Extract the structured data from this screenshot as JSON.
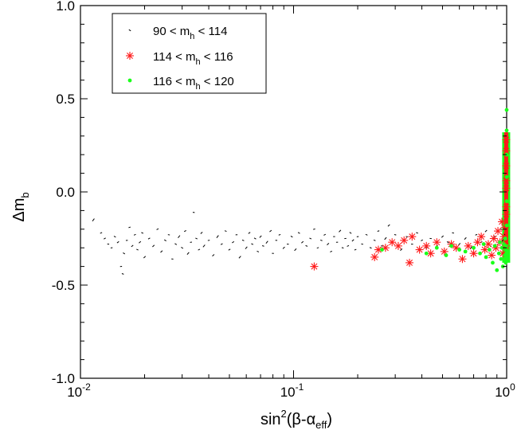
{
  "chart_data": {
    "type": "scatter",
    "title": "",
    "xlabel": {
      "base": "sin",
      "sup": "2",
      "open": "(β-α",
      "sub": "eff",
      "close": ")"
    },
    "ylabel": {
      "main": "Δm",
      "sub": "b"
    },
    "xscale": "log",
    "xlim": [
      0.01,
      1.0
    ],
    "ylim": [
      -1.0,
      1.0
    ],
    "grid": false,
    "legend_position": "top-left",
    "x_tick_labels": [
      {
        "value": 0.01,
        "base": "10",
        "exp": "-2"
      },
      {
        "value": 0.1,
        "base": "10",
        "exp": "-1"
      },
      {
        "value": 1.0,
        "base": "10",
        "exp": "0"
      }
    ],
    "y_tick_labels": [
      {
        "value": 1.0,
        "label": "1.0"
      },
      {
        "value": 0.5,
        "label": "0.5"
      },
      {
        "value": 0.0,
        "label": "0.0"
      },
      {
        "value": -0.5,
        "label": "-0.5"
      },
      {
        "value": -1.0,
        "label": "-1.0"
      }
    ],
    "series": [
      {
        "name": "90 < m_h < 114",
        "legend": {
          "pre": "90 < m",
          "sub": "h",
          "post": " < 114"
        },
        "marker": "dot",
        "color": "#000000",
        "points": [
          [
            0.0115,
            -0.15
          ],
          [
            0.0125,
            -0.22
          ],
          [
            0.013,
            -0.25
          ],
          [
            0.0135,
            -0.28
          ],
          [
            0.014,
            -0.3
          ],
          [
            0.0145,
            -0.24
          ],
          [
            0.015,
            -0.27
          ],
          [
            0.0155,
            -0.4
          ],
          [
            0.0158,
            -0.44
          ],
          [
            0.016,
            -0.33
          ],
          [
            0.0165,
            -0.26
          ],
          [
            0.017,
            -0.19
          ],
          [
            0.0175,
            -0.29
          ],
          [
            0.018,
            -0.23
          ],
          [
            0.0185,
            -0.31
          ],
          [
            0.019,
            -0.27
          ],
          [
            0.0195,
            -0.22
          ],
          [
            0.02,
            -0.35
          ],
          [
            0.021,
            -0.25
          ],
          [
            0.022,
            -0.29
          ],
          [
            0.023,
            -0.2
          ],
          [
            0.024,
            -0.32
          ],
          [
            0.025,
            -0.26
          ],
          [
            0.026,
            -0.23
          ],
          [
            0.027,
            -0.36
          ],
          [
            0.028,
            -0.28
          ],
          [
            0.029,
            -0.24
          ],
          [
            0.03,
            -0.3
          ],
          [
            0.031,
            -0.21
          ],
          [
            0.032,
            -0.33
          ],
          [
            0.033,
            -0.27
          ],
          [
            0.034,
            -0.11
          ],
          [
            0.035,
            -0.25
          ],
          [
            0.036,
            -0.31
          ],
          [
            0.037,
            -0.22
          ],
          [
            0.038,
            -0.29
          ],
          [
            0.04,
            -0.26
          ],
          [
            0.042,
            -0.34
          ],
          [
            0.044,
            -0.24
          ],
          [
            0.046,
            -0.28
          ],
          [
            0.048,
            -0.21
          ],
          [
            0.05,
            -0.31
          ],
          [
            0.052,
            -0.27
          ],
          [
            0.054,
            -0.23
          ],
          [
            0.056,
            -0.35
          ],
          [
            0.058,
            -0.26
          ],
          [
            0.06,
            -0.3
          ],
          [
            0.062,
            -0.22
          ],
          [
            0.064,
            -0.28
          ],
          [
            0.066,
            -0.25
          ],
          [
            0.068,
            -0.32
          ],
          [
            0.07,
            -0.24
          ],
          [
            0.072,
            -0.29
          ],
          [
            0.075,
            -0.27
          ],
          [
            0.078,
            -0.21
          ],
          [
            0.08,
            -0.33
          ],
          [
            0.083,
            -0.26
          ],
          [
            0.086,
            -0.23
          ],
          [
            0.09,
            -0.3
          ],
          [
            0.094,
            -0.28
          ],
          [
            0.098,
            -0.24
          ],
          [
            0.102,
            -0.31
          ],
          [
            0.106,
            -0.22
          ],
          [
            0.11,
            -0.27
          ],
          [
            0.115,
            -0.29
          ],
          [
            0.12,
            -0.25
          ],
          [
            0.125,
            -0.2
          ],
          [
            0.13,
            -0.3
          ],
          [
            0.135,
            -0.26
          ],
          [
            0.14,
            -0.23
          ],
          [
            0.145,
            -0.28
          ],
          [
            0.15,
            -0.32
          ],
          [
            0.155,
            -0.24
          ],
          [
            0.16,
            -0.27
          ],
          [
            0.165,
            -0.21
          ],
          [
            0.17,
            -0.3
          ],
          [
            0.175,
            -0.25
          ],
          [
            0.18,
            -0.29
          ],
          [
            0.185,
            -0.22
          ],
          [
            0.19,
            -0.26
          ],
          [
            0.195,
            -0.31
          ],
          [
            0.2,
            -0.24
          ],
          [
            0.21,
            -0.28
          ],
          [
            0.22,
            -0.23
          ],
          [
            0.23,
            -0.3
          ],
          [
            0.24,
            -0.26
          ],
          [
            0.25,
            -0.21
          ],
          [
            0.26,
            -0.29
          ],
          [
            0.27,
            -0.25
          ],
          [
            0.28,
            -0.18
          ],
          [
            0.29,
            -0.27
          ],
          [
            0.3,
            -0.23
          ],
          [
            0.32,
            -0.31
          ],
          [
            0.34,
            -0.24
          ],
          [
            0.36,
            -0.28
          ],
          [
            0.38,
            -0.22
          ],
          [
            0.4,
            -0.26
          ],
          [
            0.42,
            -0.3
          ],
          [
            0.44,
            -0.25
          ],
          [
            0.47,
            -0.29
          ],
          [
            0.5,
            -0.24
          ],
          [
            0.53,
            -0.27
          ],
          [
            0.56,
            -0.22
          ],
          [
            0.6,
            -0.28
          ],
          [
            0.64,
            -0.25
          ],
          [
            0.68,
            -0.3
          ],
          [
            0.72,
            -0.23
          ],
          [
            0.76,
            -0.27
          ],
          [
            0.8,
            -0.21
          ],
          [
            0.84,
            -0.29
          ],
          [
            0.88,
            -0.24
          ],
          [
            0.91,
            -0.28
          ],
          [
            0.94,
            -0.2
          ],
          [
            0.96,
            -0.26
          ],
          [
            0.98,
            -0.23
          ],
          [
            0.99,
            -0.3
          ]
        ]
      },
      {
        "name": "114 < m_h < 116",
        "legend": {
          "pre": "114 < m",
          "sub": "h",
          "post": " < 116"
        },
        "marker": "star",
        "color": "#ff1a1a",
        "points": [
          [
            0.125,
            -0.4
          ],
          [
            0.24,
            -0.35
          ],
          [
            0.25,
            -0.31
          ],
          [
            0.27,
            -0.3
          ],
          [
            0.29,
            -0.27
          ],
          [
            0.31,
            -0.29
          ],
          [
            0.33,
            -0.26
          ],
          [
            0.35,
            -0.38
          ],
          [
            0.36,
            -0.24
          ],
          [
            0.39,
            -0.31
          ],
          [
            0.42,
            -0.29
          ],
          [
            0.44,
            -0.33
          ],
          [
            0.47,
            -0.27
          ],
          [
            0.51,
            -0.32
          ],
          [
            0.55,
            -0.28
          ],
          [
            0.58,
            -0.3
          ],
          [
            0.62,
            -0.36
          ],
          [
            0.66,
            -0.29
          ],
          [
            0.7,
            -0.33
          ],
          [
            0.73,
            -0.27
          ],
          [
            0.76,
            -0.24
          ],
          [
            0.79,
            -0.31
          ],
          [
            0.82,
            -0.28
          ],
          [
            0.85,
            -0.34
          ],
          [
            0.87,
            -0.25
          ],
          [
            0.89,
            -0.3
          ],
          [
            0.91,
            -0.21
          ],
          [
            0.93,
            -0.27
          ],
          [
            0.95,
            -0.16
          ],
          [
            0.96,
            -0.33
          ],
          [
            0.97,
            -0.24
          ],
          [
            0.98,
            -0.19
          ],
          [
            0.99,
            -0.29
          ],
          [
            0.995,
            -0.12
          ],
          [
            0.995,
            -0.08
          ],
          [
            0.995,
            0.28
          ],
          [
            0.995,
            0.22
          ],
          [
            0.995,
            0.14
          ],
          [
            0.995,
            0.06
          ],
          [
            0.995,
            0.02
          ]
        ]
      },
      {
        "name": "116 < m_h < 120",
        "legend": {
          "pre": "116 < m",
          "sub": "h",
          "post": " < 120"
        },
        "marker": "circle",
        "color": "#1aff1a",
        "points": [
          [
            0.26,
            -0.31
          ],
          [
            0.42,
            -0.33
          ],
          [
            0.47,
            -0.3
          ],
          [
            0.52,
            -0.34
          ],
          [
            0.55,
            -0.29
          ],
          [
            0.6,
            -0.31
          ],
          [
            0.64,
            -0.32
          ],
          [
            0.7,
            -0.3
          ],
          [
            0.75,
            -0.33
          ],
          [
            0.78,
            -0.28
          ],
          [
            0.8,
            -0.35
          ],
          [
            0.83,
            -0.31
          ],
          [
            0.86,
            -0.38
          ],
          [
            0.88,
            -0.29
          ],
          [
            0.9,
            -0.42
          ],
          [
            0.92,
            -0.33
          ],
          [
            0.93,
            -0.27
          ],
          [
            0.94,
            -0.36
          ],
          [
            0.95,
            -0.3
          ],
          [
            0.96,
            -0.4
          ],
          [
            0.97,
            -0.28
          ],
          [
            0.98,
            -0.34
          ],
          [
            0.985,
            -0.25
          ],
          [
            0.99,
            -0.31
          ],
          [
            0.99,
            -0.38
          ],
          [
            0.995,
            -0.29
          ],
          [
            1.0,
            0.44
          ],
          [
            1.0,
            0.33
          ],
          [
            1.0,
            0.2
          ],
          [
            1.0,
            0.08
          ],
          [
            1.0,
            -0.05
          ],
          [
            1.0,
            -0.18
          ],
          [
            1.0,
            -0.33
          ]
        ]
      }
    ],
    "bands": [
      {
        "x": 0.995,
        "y_from": -0.38,
        "y_to": 0.32,
        "color": "#1aff1a",
        "width_role": "outer"
      },
      {
        "x": 0.995,
        "y_from": -0.3,
        "y_to": 0.32,
        "color": "#ff1a1a",
        "width_role": "inner"
      }
    ]
  }
}
